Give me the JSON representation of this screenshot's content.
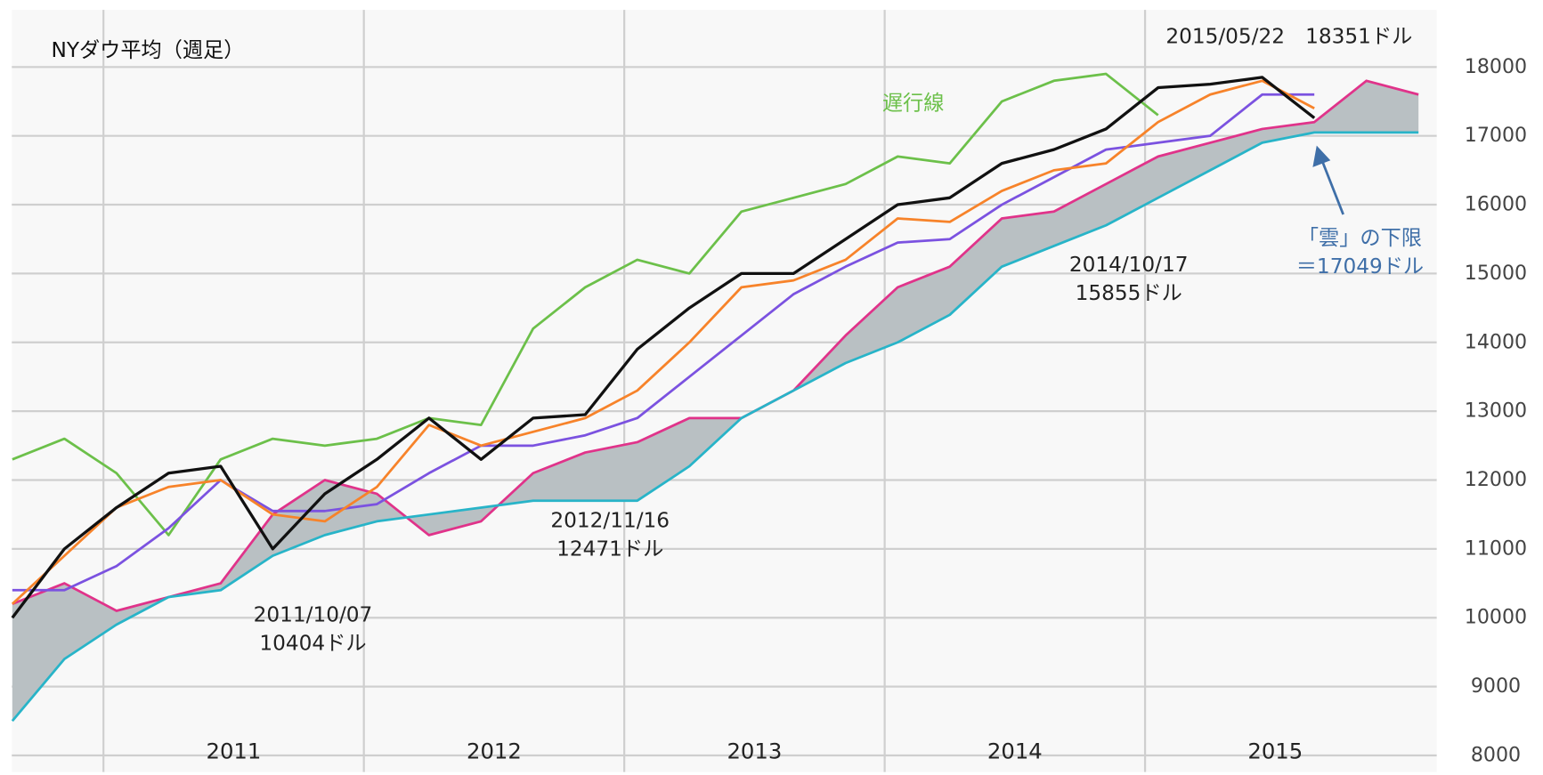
{
  "chart_data": {
    "type": "line",
    "title": "NYダウ平均（週足）",
    "x": [
      2010.65,
      2010.85,
      2011.05,
      2011.25,
      2011.45,
      2011.65,
      2011.85,
      2012.05,
      2012.25,
      2012.45,
      2012.65,
      2012.85,
      2013.05,
      2013.25,
      2013.45,
      2013.65,
      2013.85,
      2014.05,
      2014.25,
      2014.45,
      2014.65,
      2014.85,
      2015.05,
      2015.25,
      2015.45,
      2015.65,
      2015.85,
      2016.05
    ],
    "series": [
      {
        "color": "#e0338a",
        "values": [
          10200,
          10500,
          10100,
          10300,
          10500,
          11500,
          12000,
          11800,
          11200,
          11400,
          12100,
          12400,
          12550,
          12900,
          12900,
          13300,
          14100,
          14800,
          15100,
          15800,
          15900,
          16300,
          16700,
          16900,
          17100,
          17200,
          17800,
          17600
        ]
      },
      {
        "color": "#28b4c8",
        "values": [
          8500,
          9400,
          9900,
          10300,
          10400,
          10900,
          11200,
          11400,
          11500,
          11600,
          11700,
          11700,
          11700,
          12200,
          12900,
          13300,
          13700,
          14000,
          14400,
          15100,
          15400,
          15700,
          16100,
          16500,
          16900,
          17049,
          17049,
          17049
        ]
      },
      {
        "name": "遅行線",
        "color": "#6cc04a",
        "values": [
          12300,
          12600,
          12100,
          11200,
          12300,
          12600,
          12500,
          12600,
          12900,
          12800,
          14200,
          14800,
          15200,
          15000,
          15900,
          16100,
          16300,
          16700,
          16600,
          17500,
          17800,
          17900,
          17300,
          null,
          null,
          null,
          null,
          null
        ]
      },
      {
        "color": "#7b52e0",
        "values": [
          10400,
          10400,
          10750,
          11300,
          12000,
          11550,
          11550,
          11650,
          12100,
          12500,
          12500,
          12650,
          12900,
          13500,
          14100,
          14700,
          15100,
          15450,
          15500,
          16000,
          16400,
          16800,
          16900,
          17000,
          17600,
          17600,
          null,
          null
        ]
      },
      {
        "color": "#f7832a",
        "values": [
          10200,
          10900,
          11600,
          11900,
          12000,
          11500,
          11400,
          11900,
          12800,
          12500,
          12700,
          12900,
          13300,
          14000,
          14800,
          14900,
          15200,
          15800,
          15750,
          16200,
          16500,
          16600,
          17200,
          17600,
          17800,
          17400,
          null,
          null
        ]
      },
      {
        "color": "#111111",
        "values": [
          10000,
          11000,
          11600,
          12100,
          12200,
          11000,
          11800,
          12300,
          12900,
          12300,
          12900,
          12950,
          13900,
          14500,
          15000,
          15000,
          15500,
          16000,
          16100,
          16600,
          16800,
          17100,
          17700,
          17750,
          17850,
          17260,
          null,
          null
        ]
      }
    ],
    "cloud_series": [
      0,
      1
    ],
    "cloud_color": "#b9c0c3",
    "xlim": [
      2010.648,
      2016.12
    ],
    "xticks": [
      2011,
      2012,
      2013,
      2014,
      2015
    ],
    "ylim": [
      7830,
      18830
    ],
    "yticks": [
      8000,
      9000,
      10000,
      11000,
      12000,
      13000,
      14000,
      15000,
      16000,
      17000,
      18000
    ],
    "grid": true,
    "annotations": [
      {
        "lines": [
          "2015/05/22　18351ドル"
        ],
        "color": "#222222"
      },
      {
        "lines": [
          "2014/10/17",
          "15855ドル"
        ],
        "color": "#222222"
      },
      {
        "lines": [
          "2012/11/16",
          "12471ドル"
        ],
        "color": "#222222"
      },
      {
        "lines": [
          "2011/10/07",
          "10404ドル"
        ],
        "color": "#222222"
      },
      {
        "lines": [
          "「雲」の下限",
          "＝17049ドル"
        ],
        "color": "#3f6fa8"
      }
    ]
  }
}
